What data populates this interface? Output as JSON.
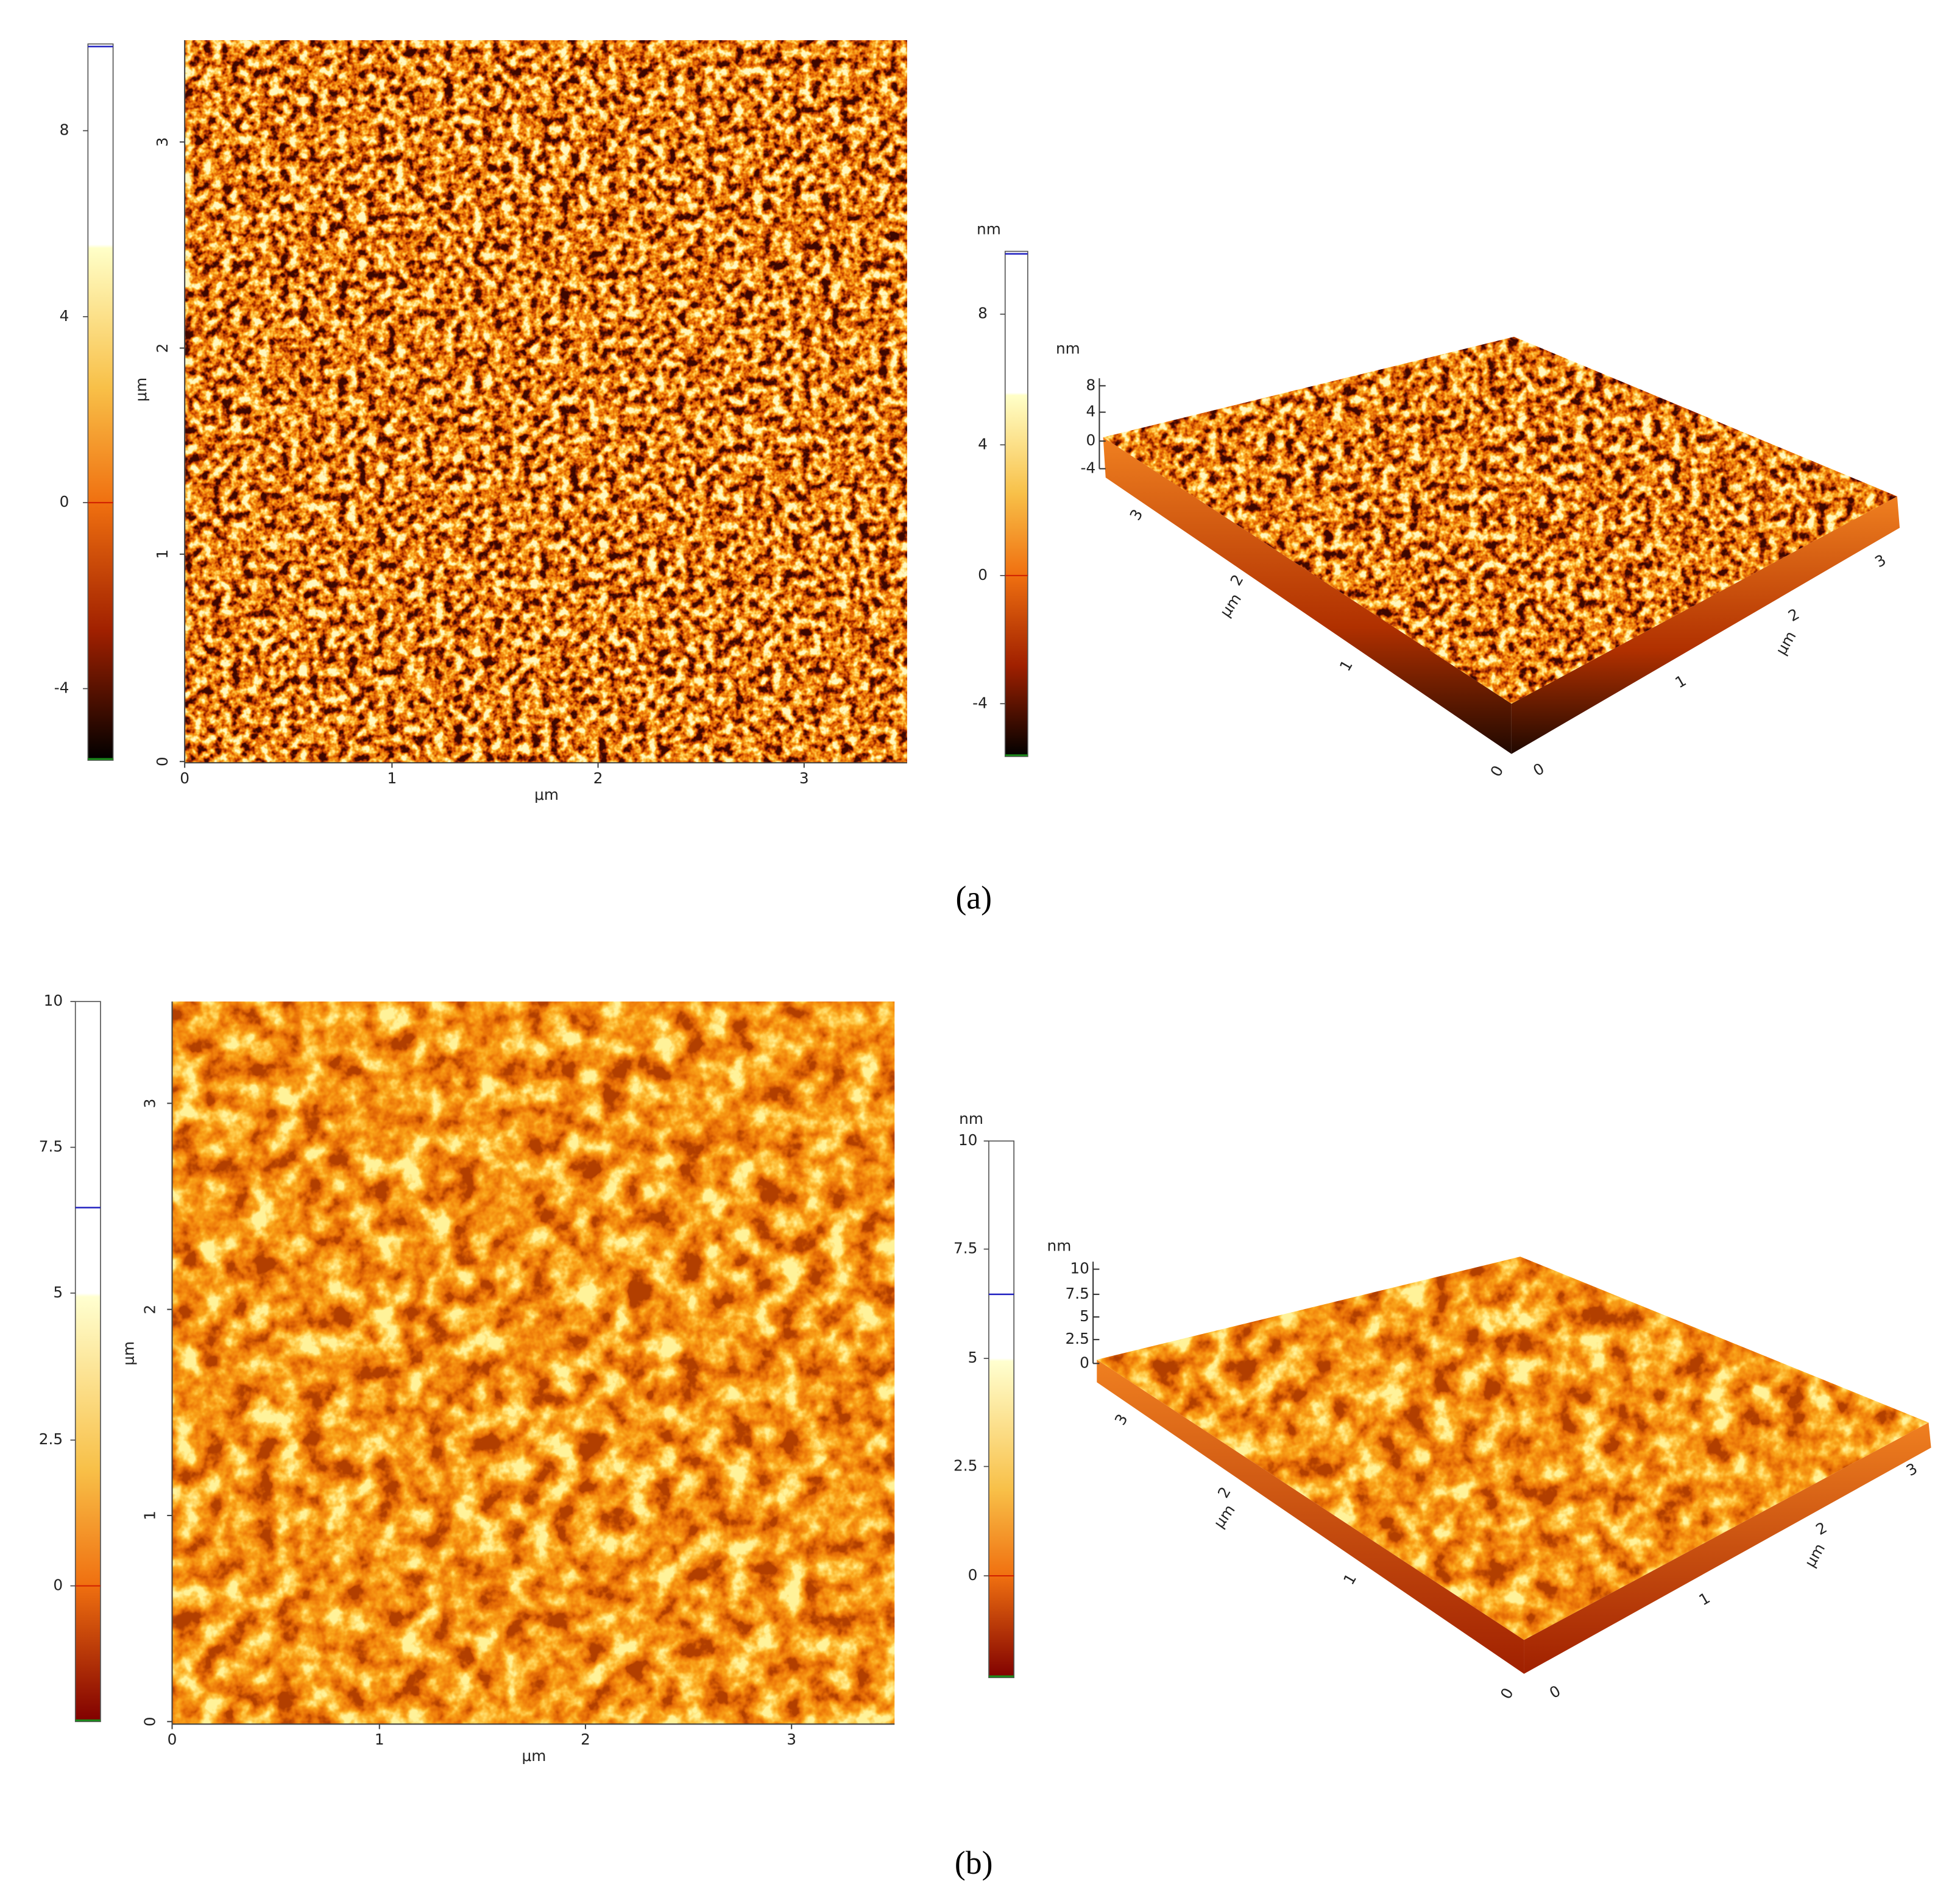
{
  "panels": [
    {
      "label": "(a)",
      "colorbar_left": {
        "ticks": [
          8,
          4,
          0,
          -4
        ]
      },
      "image_2d": {
        "y_ticks": [
          0,
          1,
          2,
          3
        ],
        "y_label": "μm",
        "x_ticks": [
          0,
          1,
          2,
          3
        ],
        "x_label": "μm"
      },
      "colorbar_right": {
        "unit": "nm",
        "ticks": [
          8,
          4,
          0,
          -4
        ]
      },
      "surface_3d": {
        "z_unit": "nm",
        "z_ticks": [
          8,
          4,
          0,
          -4
        ],
        "left_ticks": [
          3,
          2,
          1,
          0
        ],
        "left_label": "μm",
        "right_ticks": [
          0,
          1,
          2,
          3
        ],
        "right_label": "μm"
      }
    },
    {
      "label": "(b)",
      "colorbar_left": {
        "ticks": [
          10,
          7.5,
          5,
          2.5,
          0
        ]
      },
      "image_2d": {
        "y_ticks": [
          0,
          1,
          2,
          3
        ],
        "y_label": "μm",
        "x_ticks": [
          0,
          1,
          2,
          3
        ],
        "x_label": "μm"
      },
      "colorbar_right": {
        "unit": "nm",
        "ticks": [
          10,
          7.5,
          5,
          2.5,
          0
        ]
      },
      "surface_3d": {
        "z_unit": "nm",
        "z_ticks": [
          10,
          7.5,
          5,
          2.5,
          0
        ],
        "left_ticks": [
          3,
          2,
          1,
          0
        ],
        "left_label": "μm",
        "right_ticks": [
          0,
          1,
          2,
          3
        ],
        "right_label": "μm"
      }
    }
  ]
}
